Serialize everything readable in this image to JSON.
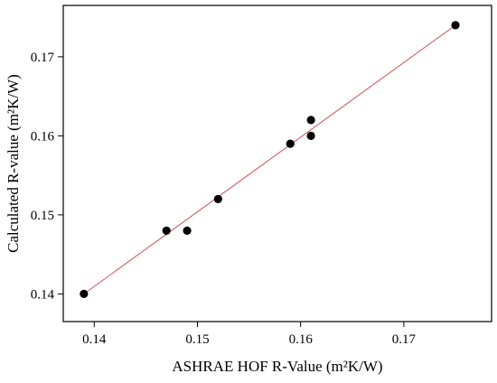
{
  "chart_data": {
    "type": "scatter",
    "title": "",
    "xlabel": "ASHRAE HOF R-Value (m²K/W)",
    "ylabel": "Calculated R-value (m²K/W)",
    "xlim": [
      0.137,
      0.1785
    ],
    "ylim": [
      0.1365,
      0.1765
    ],
    "x_ticks": [
      0.14,
      0.15,
      0.16,
      0.17
    ],
    "x_tick_labels": [
      "0.14",
      "0.15",
      "0.16",
      "0.17"
    ],
    "y_ticks": [
      0.14,
      0.15,
      0.16,
      0.17
    ],
    "y_tick_labels": [
      "0.14",
      "0.15",
      "0.16",
      "0.17"
    ],
    "grid": false,
    "legend": "none",
    "series": [
      {
        "x": [
          0.139,
          0.147,
          0.149,
          0.152,
          0.159,
          0.161,
          0.161,
          0.175
        ],
        "y": [
          0.14,
          0.148,
          0.148,
          0.152,
          0.159,
          0.16,
          0.162,
          0.174
        ],
        "color": "#000000"
      }
    ],
    "fit_line": {
      "from": [
        0.139,
        0.14
      ],
      "to": [
        0.175,
        0.174
      ],
      "color": "#d05050"
    }
  }
}
